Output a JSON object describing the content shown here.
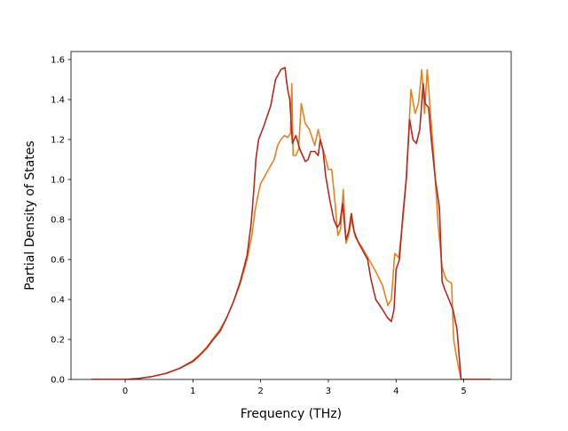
{
  "chart_data": {
    "type": "line",
    "title": "",
    "xlabel": "Frequency (THz)",
    "ylabel": "Partial Density of States",
    "xlim": [
      -0.8,
      5.7
    ],
    "ylim": [
      0.0,
      1.64
    ],
    "xticks": [
      0,
      1,
      2,
      3,
      4,
      5
    ],
    "yticks": [
      0.0,
      0.2,
      0.4,
      0.6,
      0.8,
      1.0,
      1.2,
      1.4,
      1.6
    ],
    "xtick_labels": [
      "0",
      "1",
      "2",
      "3",
      "4",
      "5"
    ],
    "ytick_labels": [
      "0.0",
      "0.2",
      "0.4",
      "0.6",
      "0.8",
      "1.0",
      "1.2",
      "1.4",
      "1.6"
    ],
    "grid": false,
    "legend": "none",
    "series": [
      {
        "color": "#e6821e",
        "points": [
          [
            -0.5,
            0.0
          ],
          [
            0.0,
            0.0
          ],
          [
            0.2,
            0.005
          ],
          [
            0.4,
            0.015
          ],
          [
            0.6,
            0.03
          ],
          [
            0.8,
            0.055
          ],
          [
            1.0,
            0.095
          ],
          [
            1.1,
            0.125
          ],
          [
            1.2,
            0.16
          ],
          [
            1.3,
            0.205
          ],
          [
            1.4,
            0.25
          ],
          [
            1.5,
            0.31
          ],
          [
            1.6,
            0.39
          ],
          [
            1.7,
            0.48
          ],
          [
            1.8,
            0.6
          ],
          [
            1.87,
            0.72
          ],
          [
            1.92,
            0.85
          ],
          [
            1.96,
            0.92
          ],
          [
            2.0,
            0.98
          ],
          [
            2.1,
            1.04
          ],
          [
            2.2,
            1.1
          ],
          [
            2.25,
            1.17
          ],
          [
            2.3,
            1.2
          ],
          [
            2.35,
            1.22
          ],
          [
            2.4,
            1.21
          ],
          [
            2.44,
            1.23
          ],
          [
            2.46,
            1.48
          ],
          [
            2.48,
            1.12
          ],
          [
            2.52,
            1.12
          ],
          [
            2.56,
            1.15
          ],
          [
            2.6,
            1.38
          ],
          [
            2.66,
            1.28
          ],
          [
            2.72,
            1.25
          ],
          [
            2.8,
            1.17
          ],
          [
            2.85,
            1.25
          ],
          [
            2.9,
            1.17
          ],
          [
            2.95,
            1.12
          ],
          [
            3.0,
            1.05
          ],
          [
            3.05,
            1.05
          ],
          [
            3.1,
            0.88
          ],
          [
            3.14,
            0.72
          ],
          [
            3.18,
            0.75
          ],
          [
            3.22,
            0.95
          ],
          [
            3.26,
            0.68
          ],
          [
            3.3,
            0.72
          ],
          [
            3.34,
            0.8
          ],
          [
            3.4,
            0.71
          ],
          [
            3.5,
            0.66
          ],
          [
            3.6,
            0.6
          ],
          [
            3.7,
            0.54
          ],
          [
            3.8,
            0.47
          ],
          [
            3.88,
            0.37
          ],
          [
            3.93,
            0.4
          ],
          [
            3.98,
            0.63
          ],
          [
            4.04,
            0.61
          ],
          [
            4.1,
            0.8
          ],
          [
            4.15,
            1.0
          ],
          [
            4.22,
            1.45
          ],
          [
            4.28,
            1.33
          ],
          [
            4.33,
            1.38
          ],
          [
            4.38,
            1.55
          ],
          [
            4.42,
            1.33
          ],
          [
            4.46,
            1.55
          ],
          [
            4.5,
            1.37
          ],
          [
            4.56,
            1.1
          ],
          [
            4.62,
            0.78
          ],
          [
            4.68,
            0.56
          ],
          [
            4.74,
            0.5
          ],
          [
            4.82,
            0.48
          ],
          [
            4.85,
            0.2
          ],
          [
            4.9,
            0.1
          ],
          [
            4.96,
            0.0
          ],
          [
            5.4,
            0.0
          ]
        ]
      },
      {
        "color": "#b82820",
        "points": [
          [
            -0.5,
            0.0
          ],
          [
            0.0,
            0.0
          ],
          [
            0.2,
            0.005
          ],
          [
            0.4,
            0.015
          ],
          [
            0.6,
            0.03
          ],
          [
            0.8,
            0.055
          ],
          [
            1.0,
            0.09
          ],
          [
            1.1,
            0.12
          ],
          [
            1.2,
            0.155
          ],
          [
            1.3,
            0.2
          ],
          [
            1.4,
            0.24
          ],
          [
            1.5,
            0.31
          ],
          [
            1.6,
            0.39
          ],
          [
            1.7,
            0.49
          ],
          [
            1.8,
            0.62
          ],
          [
            1.86,
            0.78
          ],
          [
            1.9,
            0.95
          ],
          [
            1.93,
            1.1
          ],
          [
            1.97,
            1.2
          ],
          [
            2.05,
            1.27
          ],
          [
            2.15,
            1.37
          ],
          [
            2.22,
            1.5
          ],
          [
            2.3,
            1.55
          ],
          [
            2.36,
            1.56
          ],
          [
            2.38,
            1.5
          ],
          [
            2.4,
            1.45
          ],
          [
            2.43,
            1.4
          ],
          [
            2.47,
            1.18
          ],
          [
            2.52,
            1.22
          ],
          [
            2.58,
            1.15
          ],
          [
            2.62,
            1.12
          ],
          [
            2.66,
            1.09
          ],
          [
            2.7,
            1.1
          ],
          [
            2.74,
            1.14
          ],
          [
            2.8,
            1.14
          ],
          [
            2.85,
            1.12
          ],
          [
            2.88,
            1.2
          ],
          [
            2.92,
            1.15
          ],
          [
            2.96,
            1.02
          ],
          [
            3.02,
            0.9
          ],
          [
            3.08,
            0.8
          ],
          [
            3.13,
            0.76
          ],
          [
            3.17,
            0.78
          ],
          [
            3.21,
            0.88
          ],
          [
            3.26,
            0.7
          ],
          [
            3.3,
            0.74
          ],
          [
            3.34,
            0.83
          ],
          [
            3.38,
            0.74
          ],
          [
            3.45,
            0.68
          ],
          [
            3.5,
            0.65
          ],
          [
            3.58,
            0.6
          ],
          [
            3.63,
            0.5
          ],
          [
            3.7,
            0.4
          ],
          [
            3.8,
            0.35
          ],
          [
            3.87,
            0.31
          ],
          [
            3.93,
            0.29
          ],
          [
            3.97,
            0.35
          ],
          [
            4.0,
            0.55
          ],
          [
            4.05,
            0.6
          ],
          [
            4.1,
            0.82
          ],
          [
            4.15,
            1.0
          ],
          [
            4.2,
            1.3
          ],
          [
            4.25,
            1.2
          ],
          [
            4.3,
            1.18
          ],
          [
            4.35,
            1.25
          ],
          [
            4.4,
            1.48
          ],
          [
            4.43,
            1.38
          ],
          [
            4.48,
            1.36
          ],
          [
            4.52,
            1.2
          ],
          [
            4.58,
            1.0
          ],
          [
            4.64,
            0.86
          ],
          [
            4.68,
            0.49
          ],
          [
            4.72,
            0.45
          ],
          [
            4.78,
            0.4
          ],
          [
            4.84,
            0.35
          ],
          [
            4.9,
            0.25
          ],
          [
            4.96,
            0.0
          ],
          [
            5.4,
            0.0
          ]
        ]
      }
    ]
  }
}
